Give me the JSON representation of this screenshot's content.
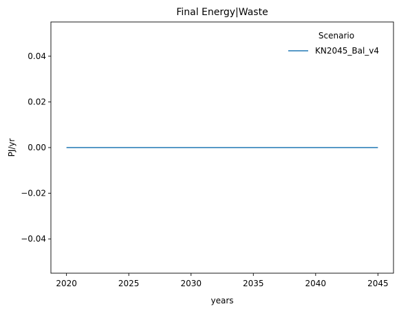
{
  "chart_data": {
    "type": "line",
    "title": "Final Energy|Waste",
    "xlabel": "years",
    "ylabel": "PJ/yr",
    "xlim": [
      2018.75,
      2046.25
    ],
    "ylim": [
      -0.055,
      0.055
    ],
    "xticks": [
      2020,
      2025,
      2030,
      2035,
      2040,
      2045
    ],
    "xtick_labels": [
      "2020",
      "2025",
      "2030",
      "2035",
      "2040",
      "2045"
    ],
    "yticks": [
      -0.04,
      -0.02,
      0.0,
      0.02,
      0.04
    ],
    "ytick_labels": [
      "−0.04",
      "−0.02",
      "0.00",
      "0.02",
      "0.04"
    ],
    "grid": false,
    "legend": {
      "title": "Scenario",
      "placement": "top-right"
    },
    "series": [
      {
        "name": "KN2045_Bal_v4",
        "color": "#1f77b4",
        "x": [
          2020,
          2025,
          2030,
          2035,
          2040,
          2045
        ],
        "y": [
          0,
          0,
          0,
          0,
          0,
          0
        ]
      }
    ]
  }
}
